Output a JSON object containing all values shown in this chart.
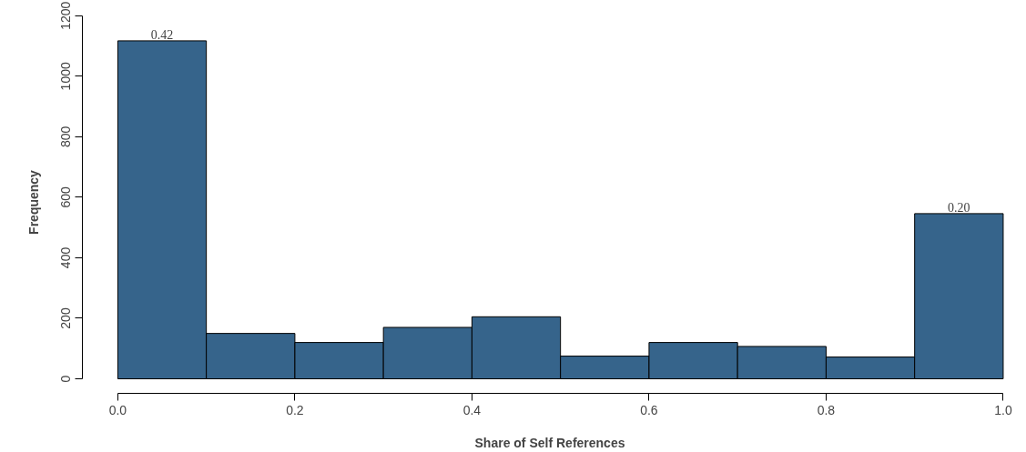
{
  "chart_data": {
    "type": "histogram",
    "xlabel": "Share of Self References",
    "ylabel": "Frequency",
    "bins": [
      0.0,
      0.1,
      0.2,
      0.3,
      0.4,
      0.5,
      0.6,
      0.7,
      0.8,
      0.9,
      1.0
    ],
    "values": [
      1117,
      150,
      120,
      170,
      205,
      75,
      120,
      107,
      72,
      546
    ],
    "color": "#36648b",
    "xlim": [
      0.0,
      1.0
    ],
    "ylim": [
      0,
      1200
    ],
    "xticks": [
      {
        "value": 0.0,
        "label": "0.0"
      },
      {
        "value": 0.2,
        "label": "0.2"
      },
      {
        "value": 0.4,
        "label": "0.4"
      },
      {
        "value": 0.6,
        "label": "0.6"
      },
      {
        "value": 0.8,
        "label": "0.8"
      },
      {
        "value": 1.0,
        "label": "1.0"
      }
    ],
    "yticks": [
      0,
      200,
      400,
      600,
      800,
      1000,
      1200
    ],
    "annotations": [
      {
        "text": "0.42",
        "x": 0.05,
        "y": 1117
      },
      {
        "text": "0.20",
        "x": 0.95,
        "y": 546
      }
    ]
  }
}
